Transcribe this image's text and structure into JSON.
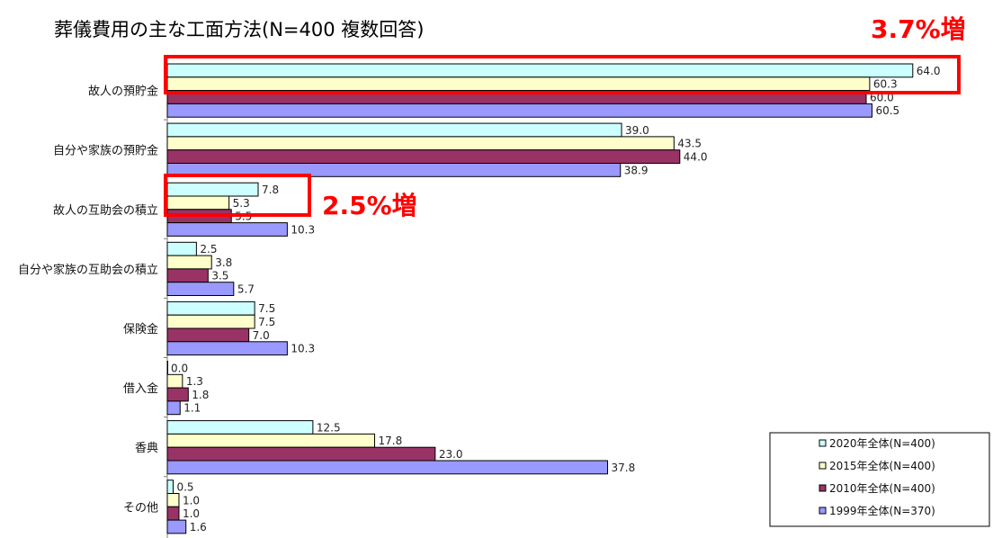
{
  "chart_data": {
    "type": "bar",
    "orientation": "horizontal",
    "title": "葬儀費用の主な工面方法(N=400 複数回答)",
    "categories": [
      "故人の預貯金",
      "自分や家族の預貯金",
      "故人の互助会の積立",
      "自分や家族の互助会の積立",
      "保険金",
      "借入金",
      "香典",
      "その他"
    ],
    "series": [
      {
        "name": "2020年全体(N=400)",
        "color": "#ccffff",
        "values": [
          64.0,
          39.0,
          7.8,
          2.5,
          7.5,
          0.0,
          12.5,
          0.5
        ],
        "labels": [
          "64.0",
          "39.0",
          "7.8",
          "2.5",
          "7.5",
          "0.0",
          "12.5",
          "0.5"
        ]
      },
      {
        "name": "2015年全体(N=400)",
        "color": "#ffffcc",
        "values": [
          60.3,
          43.5,
          5.3,
          3.8,
          7.5,
          1.3,
          17.8,
          1.0
        ],
        "labels": [
          "60.3",
          "43.5",
          "5.3",
          "3.8",
          "7.5",
          "1.3",
          "17.8",
          "1.0"
        ]
      },
      {
        "name": "2010年全体(N=400)",
        "color": "#993366",
        "values": [
          60.0,
          44.0,
          5.5,
          3.5,
          7.0,
          1.8,
          23.0,
          1.0
        ],
        "labels": [
          "60.0",
          "44.0",
          "5.5",
          "3.5",
          "7.0",
          "1.8",
          "23.0",
          "1.0"
        ]
      },
      {
        "name": "1999年全体(N=370)",
        "color": "#9999ff",
        "values": [
          60.5,
          38.9,
          10.3,
          5.7,
          10.3,
          1.1,
          37.8,
          1.6
        ],
        "labels": [
          "60.5",
          "38.9",
          "10.3",
          "5.7",
          "10.3",
          "1.1",
          "37.8",
          "1.6"
        ]
      }
    ],
    "xlim": [
      0,
      70
    ],
    "grid": false,
    "legend_position": "bottom-right",
    "annotations": [
      {
        "text": "3.7%増",
        "category_index": 0,
        "color": "#ff0000"
      },
      {
        "text": "2.5%増",
        "category_index": 2,
        "color": "#ff0000"
      }
    ]
  }
}
